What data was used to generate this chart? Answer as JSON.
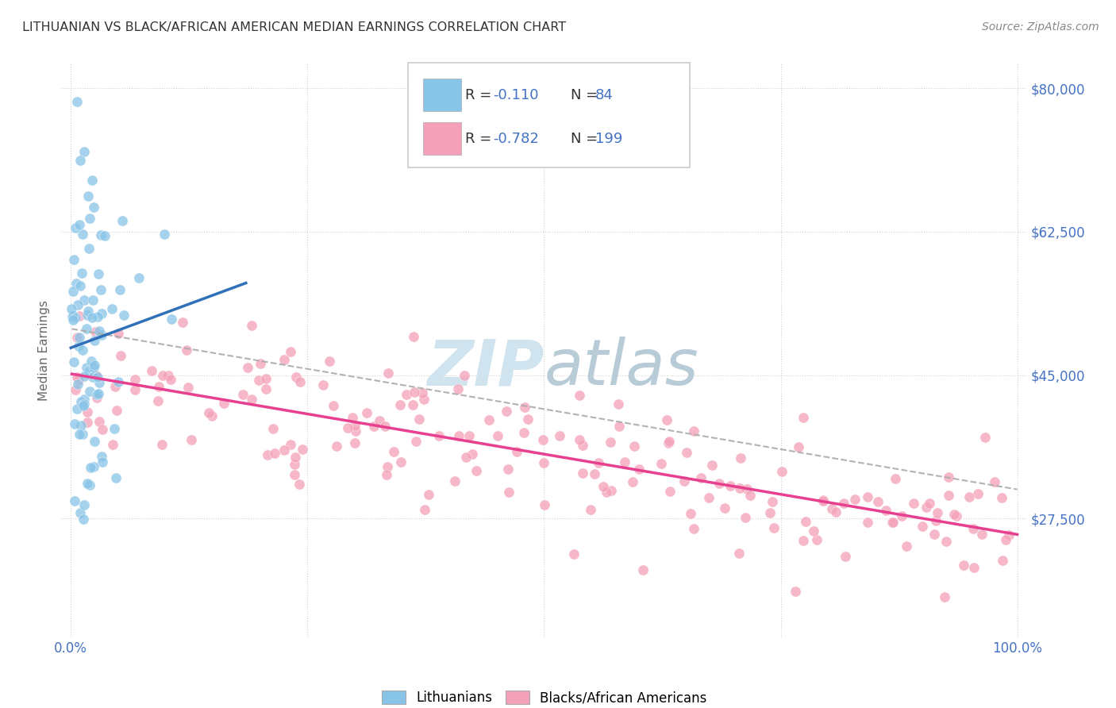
{
  "title": "LITHUANIAN VS BLACK/AFRICAN AMERICAN MEDIAN EARNINGS CORRELATION CHART",
  "source": "Source: ZipAtlas.com",
  "ylabel": "Median Earnings",
  "legend_labels": [
    "Lithuanians",
    "Blacks/African Americans"
  ],
  "r_blue": -0.11,
  "n_blue": 84,
  "r_pink": -0.782,
  "n_pink": 199,
  "blue_color": "#88c4e8",
  "pink_color": "#f4a0b8",
  "blue_line_color": "#3070b8",
  "pink_line_color": "#e84090",
  "dashed_line_color": "#aaaaaa",
  "watermark_color": "#d0e4f0",
  "background_color": "#ffffff",
  "grid_color": "#cccccc",
  "title_color": "#333333",
  "axis_color": "#4472c4",
  "source_color": "#888888",
  "ylabel_color": "#666666",
  "xmin": 0.0,
  "xmax": 1.0,
  "ymin": 13000,
  "ymax": 83000,
  "ytick_vals": [
    27500,
    45000,
    62500,
    80000
  ],
  "ytick_labels": [
    "$27,500",
    "$45,000",
    "$62,500",
    "$80,000"
  ]
}
